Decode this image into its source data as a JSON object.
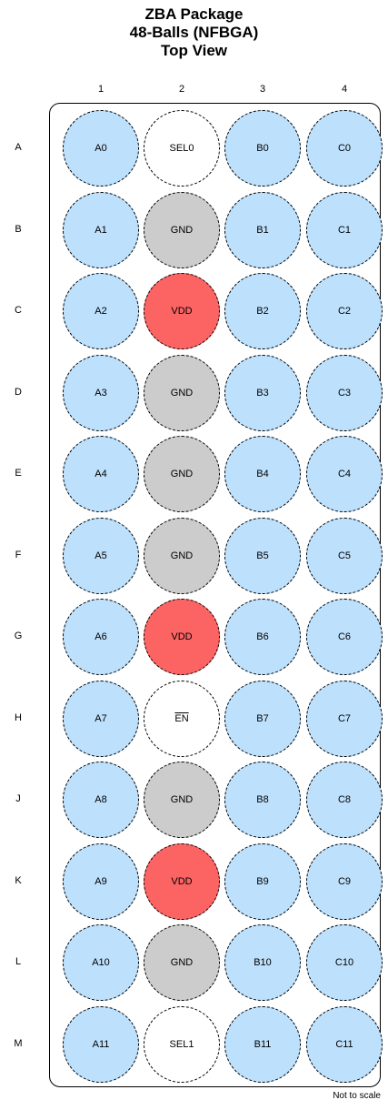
{
  "title": {
    "line1": "ZBA Package",
    "line2": "48-Balls (NFBGA)",
    "line3": "Top View"
  },
  "columns": [
    "1",
    "2",
    "3",
    "4"
  ],
  "rows": [
    "A",
    "B",
    "C",
    "D",
    "E",
    "F",
    "G",
    "H",
    "J",
    "K",
    "L",
    "M"
  ],
  "colors": {
    "signal": "#bde0fc",
    "gnd": "#cccccc",
    "vdd": "#fc6464",
    "control": "#ffffff"
  },
  "balls": [
    [
      "A0",
      "SEL0",
      "B0",
      "C0"
    ],
    [
      "A1",
      "GND",
      "B1",
      "C1"
    ],
    [
      "A2",
      "VDD",
      "B2",
      "C2"
    ],
    [
      "A3",
      "GND",
      "B3",
      "C3"
    ],
    [
      "A4",
      "GND",
      "B4",
      "C4"
    ],
    [
      "A5",
      "GND",
      "B5",
      "C5"
    ],
    [
      "A6",
      "VDD",
      "B6",
      "C6"
    ],
    [
      "A7",
      "EN",
      "B7",
      "C7"
    ],
    [
      "A8",
      "GND",
      "B8",
      "C8"
    ],
    [
      "A9",
      "VDD",
      "B9",
      "C9"
    ],
    [
      "A10",
      "GND",
      "B10",
      "C10"
    ],
    [
      "A11",
      "SEL1",
      "B11",
      "C11"
    ]
  ],
  "overlined": [
    "EN"
  ],
  "note": "Not to scale"
}
